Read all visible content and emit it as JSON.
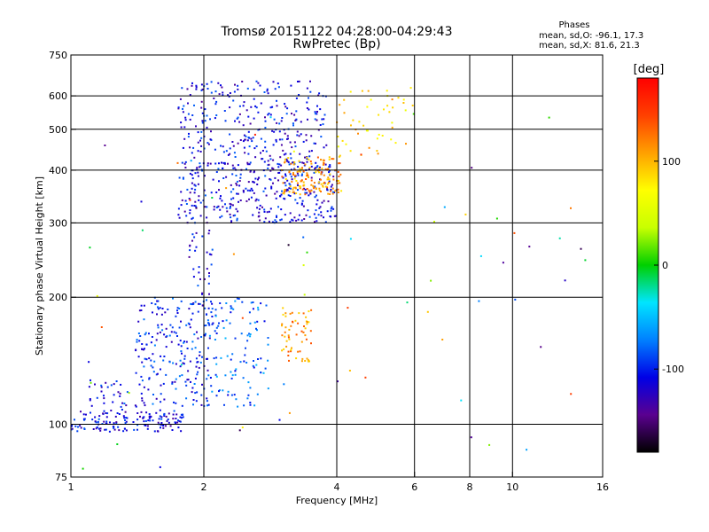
{
  "chart_data": {
    "type": "scatter",
    "title": "Tromsø 20151122 04:28:00-04:29:43",
    "subtitle": "RwPretec (Bp)",
    "xlabel": "Frequency [MHz]",
    "ylabel": "Stationary phase Virtual Height [km]",
    "x_scale": "log",
    "y_scale": "log",
    "xlim": [
      1,
      16
    ],
    "ylim": [
      75,
      750
    ],
    "x_ticks": [
      1,
      2,
      4,
      6,
      8,
      10,
      16
    ],
    "y_ticks": [
      75,
      100,
      200,
      300,
      400,
      500,
      600,
      750
    ],
    "grid": true,
    "stats": {
      "heading": "Phases",
      "line_o": "mean, sd,O: -96.1, 17.3",
      "line_x": "mean, sd,X:  81.6, 21.3"
    },
    "colorbar": {
      "label": "[deg]",
      "ticks": [
        100,
        0,
        -100
      ],
      "range": [
        -180,
        180
      ],
      "colors": [
        "#000000",
        "#5a0090",
        "#0000e6",
        "#0080ff",
        "#00e5ff",
        "#00d000",
        "#c8ff00",
        "#ffff00",
        "#ffa000",
        "#ff4000",
        "#ff0000"
      ]
    },
    "clusters": [
      {
        "name": "",
        "freq": [
          1.0,
          1.8
        ],
        "height": [
          96,
          108
        ],
        "phase": -110,
        "n": 150
      },
      {
        "name": "",
        "freq": [
          1.1,
          1.35
        ],
        "height": [
          108,
          128
        ],
        "phase": -105,
        "n": 30
      },
      {
        "name": "",
        "freq": [
          1.4,
          2.1
        ],
        "height": [
          110,
          200
        ],
        "phase": -100,
        "n": 220
      },
      {
        "name": "",
        "freq": [
          1.85,
          2.1
        ],
        "height": [
          190,
          290
        ],
        "phase": -110,
        "n": 40
      },
      {
        "name": "",
        "freq": [
          2.05,
          2.8
        ],
        "height": [
          110,
          200
        ],
        "phase": -80,
        "n": 110
      },
      {
        "name": "",
        "freq": [
          1.75,
          4.0
        ],
        "height": [
          300,
          420
        ],
        "phase": -110,
        "n": 380
      },
      {
        "name": "",
        "freq": [
          1.75,
          3.8
        ],
        "height": [
          420,
          650
        ],
        "phase": -110,
        "n": 280
      },
      {
        "name": "",
        "freq": [
          3.0,
          4.1
        ],
        "height": [
          350,
          430
        ],
        "phase": 110,
        "n": 140
      },
      {
        "name": "",
        "freq": [
          3.0,
          3.5
        ],
        "height": [
          140,
          190
        ],
        "phase": 110,
        "n": 60
      },
      {
        "name": "",
        "freq": [
          4.0,
          6.0
        ],
        "height": [
          430,
          630
        ],
        "phase": 90,
        "n": 50
      },
      {
        "name": "",
        "freq": [
          1.0,
          16.0
        ],
        "height": [
          78,
          600
        ],
        "phase": 0,
        "n": 70
      }
    ]
  }
}
